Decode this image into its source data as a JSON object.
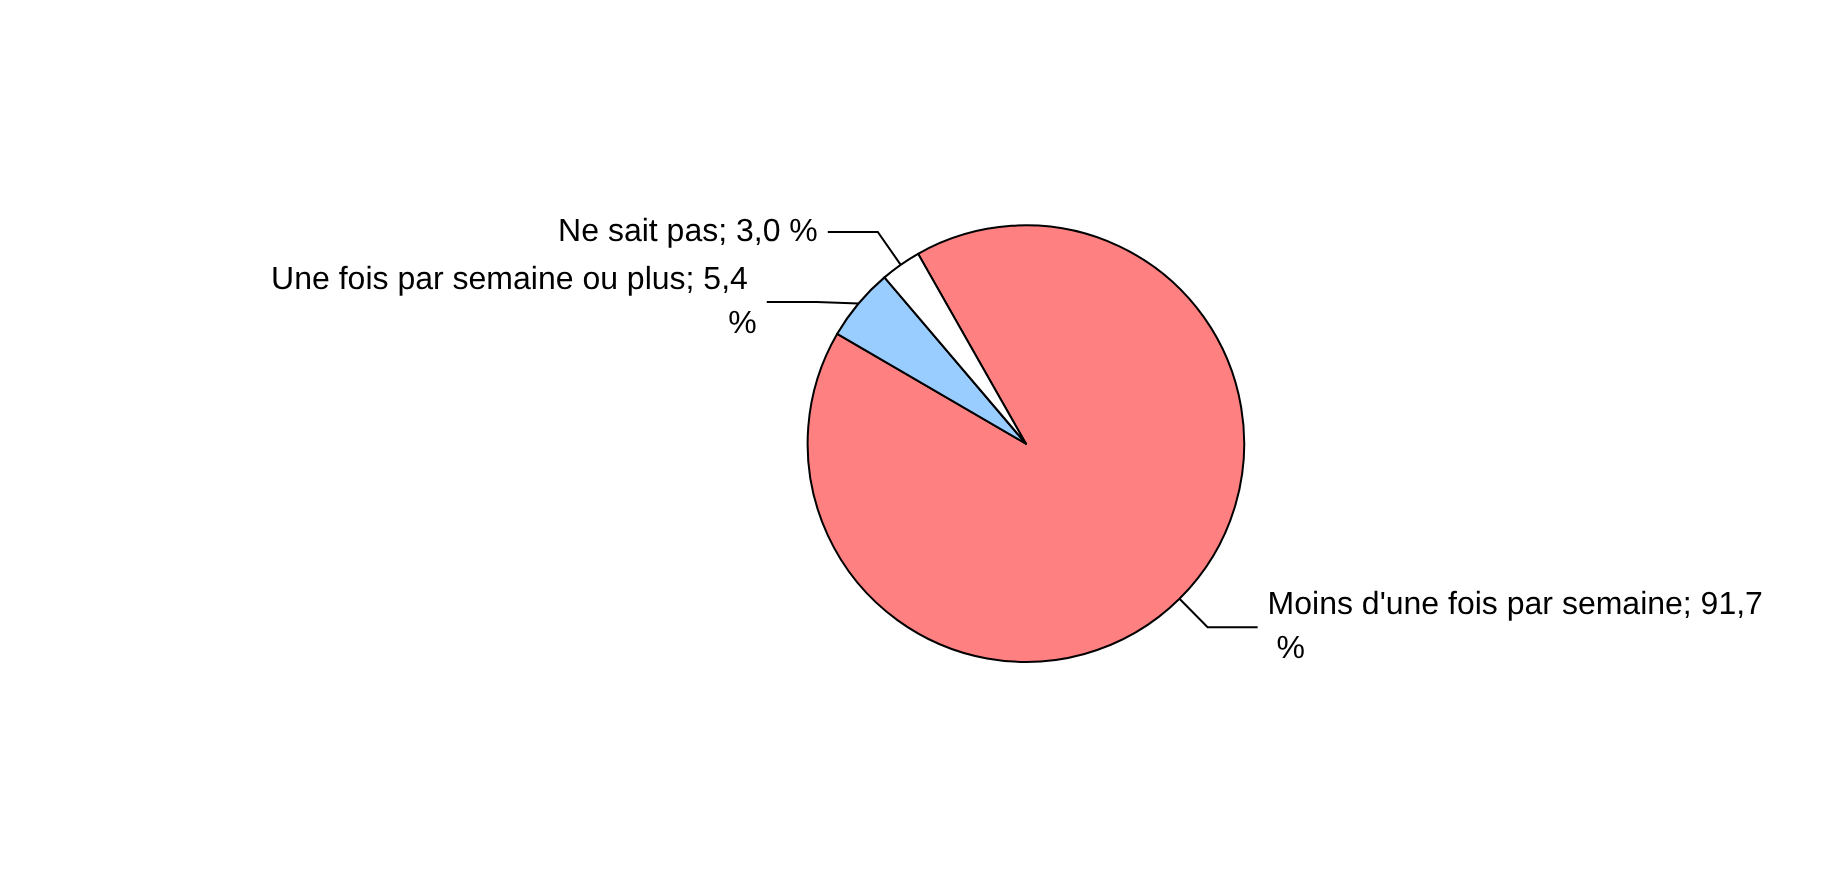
{
  "chart_data": {
    "type": "pie",
    "categories": [
      "Moins d'une fois par semaine",
      "Une fois par semaine ou plus",
      "Ne sait pas"
    ],
    "values": [
      91.7,
      5.4,
      3.0
    ],
    "value_labels": [
      "91,7 %",
      "5,4 %",
      "3,0 %"
    ],
    "colors": [
      "#ff8080",
      "#99ccff",
      "#ffffff"
    ],
    "legend": false
  }
}
